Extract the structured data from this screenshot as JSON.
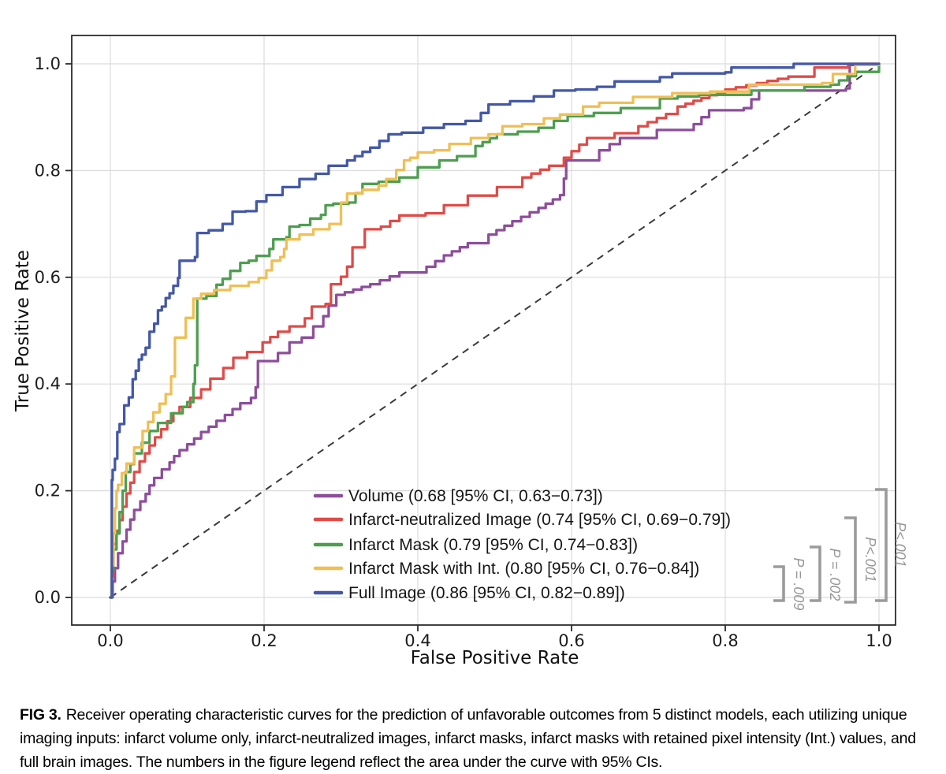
{
  "figure": {
    "caption_label": "FIG 3.",
    "caption_text": "Receiver operating characteristic curves for the prediction of unfavorable outcomes from 5 distinct models, each utilizing unique imaging inputs: infarct volume only, infarct-neutralized images, infarct masks, infarct masks with retained pixel intensity (Int.) values, and full brain images. The numbers in the figure legend reflect the area under the curve with 95% CIs."
  },
  "chart_data": {
    "type": "line",
    "subtype": "roc-step-curves",
    "title": "",
    "xlabel": "False Positive Rate",
    "ylabel": "True Positive Rate",
    "x_ticks": [
      "0.0",
      "0.2",
      "0.4",
      "0.6",
      "0.8",
      "1.0"
    ],
    "y_ticks": [
      "0.0",
      "0.2",
      "0.4",
      "0.6",
      "0.8",
      "1.0"
    ],
    "xlim": [
      -0.05,
      1.05
    ],
    "ylim": [
      -0.05,
      1.05
    ],
    "grid": true,
    "grid_color": "#dcdcdc",
    "spine_color": "#2b2b2b",
    "legend_position": "lower right",
    "reference_line": {
      "type": "diagonal",
      "from": [
        0,
        0
      ],
      "to": [
        1,
        1
      ],
      "style": "dashed",
      "color": "#3a3a3a"
    },
    "series": [
      {
        "name": "Volume",
        "legend_label": "Volume (0.68 [95% CI, 0.63−0.73])",
        "auc": 0.68,
        "ci_low": 0.63,
        "ci_high": 0.73,
        "color": "#8e4d9c",
        "points": [
          [
            0,
            0
          ],
          [
            0.003,
            0.03
          ],
          [
            0.006,
            0.055
          ],
          [
            0.01,
            0.083
          ],
          [
            0.016,
            0.105
          ],
          [
            0.021,
            0.127
          ],
          [
            0.026,
            0.146
          ],
          [
            0.031,
            0.164
          ],
          [
            0.039,
            0.18
          ],
          [
            0.046,
            0.194
          ],
          [
            0.051,
            0.21
          ],
          [
            0.057,
            0.224
          ],
          [
            0.067,
            0.24
          ],
          [
            0.077,
            0.253
          ],
          [
            0.083,
            0.265
          ],
          [
            0.09,
            0.276
          ],
          [
            0.1,
            0.287
          ],
          [
            0.109,
            0.298
          ],
          [
            0.118,
            0.31
          ],
          [
            0.128,
            0.32
          ],
          [
            0.138,
            0.331
          ],
          [
            0.149,
            0.342
          ],
          [
            0.159,
            0.353
          ],
          [
            0.169,
            0.364
          ],
          [
            0.183,
            0.374
          ],
          [
            0.189,
            0.394
          ],
          [
            0.192,
            0.443
          ],
          [
            0.218,
            0.458
          ],
          [
            0.233,
            0.478
          ],
          [
            0.249,
            0.487
          ],
          [
            0.264,
            0.508
          ],
          [
            0.277,
            0.527
          ],
          [
            0.284,
            0.547
          ],
          [
            0.294,
            0.567
          ],
          [
            0.338,
            0.587
          ],
          [
            0.376,
            0.609
          ],
          [
            0.4,
            0.609
          ],
          [
            0.434,
            0.641
          ],
          [
            0.465,
            0.664
          ],
          [
            0.492,
            0.68
          ],
          [
            0.523,
            0.705
          ],
          [
            0.557,
            0.73
          ],
          [
            0.585,
            0.754
          ],
          [
            0.59,
            0.785
          ],
          [
            0.593,
            0.819
          ],
          [
            0.636,
            0.838
          ],
          [
            0.663,
            0.861
          ],
          [
            0.711,
            0.876
          ],
          [
            0.759,
            0.887
          ],
          [
            0.779,
            0.913
          ],
          [
            0.824,
            0.917
          ],
          [
            0.844,
            0.95
          ],
          [
            0.957,
            0.954
          ],
          [
            0.962,
            0.998
          ],
          [
            1,
            1
          ]
        ]
      },
      {
        "name": "Infarct-neutralized Image",
        "legend_label": "Infarct-neutralized Image (0.74 [95% CI, 0.69−0.79])",
        "auc": 0.74,
        "ci_low": 0.69,
        "ci_high": 0.79,
        "color": "#e04b48",
        "points": [
          [
            0,
            0
          ],
          [
            0.002,
            0.04
          ],
          [
            0.004,
            0.1
          ],
          [
            0.008,
            0.125
          ],
          [
            0.012,
            0.145
          ],
          [
            0.016,
            0.17
          ],
          [
            0.021,
            0.195
          ],
          [
            0.026,
            0.215
          ],
          [
            0.031,
            0.235
          ],
          [
            0.038,
            0.255
          ],
          [
            0.045,
            0.27
          ],
          [
            0.051,
            0.285
          ],
          [
            0.058,
            0.3
          ],
          [
            0.066,
            0.315
          ],
          [
            0.074,
            0.33
          ],
          [
            0.082,
            0.345
          ],
          [
            0.09,
            0.357
          ],
          [
            0.104,
            0.374
          ],
          [
            0.118,
            0.39
          ],
          [
            0.13,
            0.41
          ],
          [
            0.147,
            0.43
          ],
          [
            0.16,
            0.449
          ],
          [
            0.178,
            0.46
          ],
          [
            0.198,
            0.478
          ],
          [
            0.218,
            0.498
          ],
          [
            0.233,
            0.508
          ],
          [
            0.253,
            0.523
          ],
          [
            0.262,
            0.545
          ],
          [
            0.28,
            0.55
          ],
          [
            0.287,
            0.587
          ],
          [
            0.3,
            0.601
          ],
          [
            0.308,
            0.62
          ],
          [
            0.315,
            0.656
          ],
          [
            0.331,
            0.69
          ],
          [
            0.352,
            0.695
          ],
          [
            0.376,
            0.716
          ],
          [
            0.41,
            0.72
          ],
          [
            0.434,
            0.735
          ],
          [
            0.465,
            0.753
          ],
          [
            0.503,
            0.769
          ],
          [
            0.536,
            0.787
          ],
          [
            0.571,
            0.809
          ],
          [
            0.59,
            0.824
          ],
          [
            0.62,
            0.861
          ],
          [
            0.656,
            0.87
          ],
          [
            0.687,
            0.883
          ],
          [
            0.723,
            0.906
          ],
          [
            0.738,
            0.92
          ],
          [
            0.8,
            0.952
          ],
          [
            0.882,
            0.976
          ],
          [
            0.916,
            0.993
          ],
          [
            0.96,
            1
          ],
          [
            1,
            1
          ]
        ]
      },
      {
        "name": "Infarct Mask",
        "legend_label": "Infarct Mask (0.79 [95% CI, 0.74−0.83])",
        "auc": 0.79,
        "ci_low": 0.74,
        "ci_high": 0.83,
        "color": "#4e9e50",
        "points": [
          [
            0,
            0
          ],
          [
            0.002,
            0.05
          ],
          [
            0.004,
            0.09
          ],
          [
            0.008,
            0.12
          ],
          [
            0.012,
            0.16
          ],
          [
            0.016,
            0.2
          ],
          [
            0.02,
            0.235
          ],
          [
            0.026,
            0.25
          ],
          [
            0.031,
            0.27
          ],
          [
            0.041,
            0.29
          ],
          [
            0.051,
            0.312
          ],
          [
            0.062,
            0.327
          ],
          [
            0.079,
            0.345
          ],
          [
            0.094,
            0.357
          ],
          [
            0.1,
            0.366
          ],
          [
            0.108,
            0.4
          ],
          [
            0.11,
            0.435
          ],
          [
            0.113,
            0.56
          ],
          [
            0.125,
            0.565
          ],
          [
            0.138,
            0.586
          ],
          [
            0.146,
            0.597
          ],
          [
            0.156,
            0.612
          ],
          [
            0.169,
            0.627
          ],
          [
            0.18,
            0.631
          ],
          [
            0.19,
            0.64
          ],
          [
            0.207,
            0.653
          ],
          [
            0.212,
            0.671
          ],
          [
            0.229,
            0.675
          ],
          [
            0.233,
            0.695
          ],
          [
            0.246,
            0.698
          ],
          [
            0.26,
            0.71
          ],
          [
            0.274,
            0.717
          ],
          [
            0.28,
            0.735
          ],
          [
            0.29,
            0.738
          ],
          [
            0.31,
            0.74
          ],
          [
            0.328,
            0.775
          ],
          [
            0.349,
            0.779
          ],
          [
            0.376,
            0.787
          ],
          [
            0.4,
            0.806
          ],
          [
            0.428,
            0.819
          ],
          [
            0.451,
            0.827
          ],
          [
            0.475,
            0.846
          ],
          [
            0.503,
            0.868
          ],
          [
            0.53,
            0.873
          ],
          [
            0.557,
            0.88
          ],
          [
            0.577,
            0.893
          ],
          [
            0.595,
            0.902
          ],
          [
            0.629,
            0.908
          ],
          [
            0.664,
            0.917
          ],
          [
            0.715,
            0.935
          ],
          [
            0.738,
            0.939
          ],
          [
            0.766,
            0.942
          ],
          [
            0.834,
            0.95
          ],
          [
            0.903,
            0.957
          ],
          [
            0.937,
            0.961
          ],
          [
            0.97,
            0.985
          ],
          [
            1,
            1
          ]
        ]
      },
      {
        "name": "Infarct Mask with Int.",
        "legend_label": "Infarct Mask with Int. (0.80 [95% CI, 0.76−0.84])",
        "auc": 0.8,
        "ci_low": 0.76,
        "ci_high": 0.84,
        "color": "#f0bf54",
        "points": [
          [
            0,
            0
          ],
          [
            0.002,
            0.06
          ],
          [
            0.004,
            0.12
          ],
          [
            0.006,
            0.167
          ],
          [
            0.008,
            0.2
          ],
          [
            0.01,
            0.211
          ],
          [
            0.015,
            0.233
          ],
          [
            0.021,
            0.251
          ],
          [
            0.031,
            0.281
          ],
          [
            0.042,
            0.312
          ],
          [
            0.049,
            0.329
          ],
          [
            0.056,
            0.347
          ],
          [
            0.064,
            0.363
          ],
          [
            0.072,
            0.381
          ],
          [
            0.079,
            0.414
          ],
          [
            0.084,
            0.487
          ],
          [
            0.098,
            0.524
          ],
          [
            0.108,
            0.56
          ],
          [
            0.118,
            0.569
          ],
          [
            0.135,
            0.576
          ],
          [
            0.156,
            0.584
          ],
          [
            0.18,
            0.591
          ],
          [
            0.193,
            0.599
          ],
          [
            0.203,
            0.613
          ],
          [
            0.21,
            0.631
          ],
          [
            0.221,
            0.638
          ],
          [
            0.226,
            0.653
          ],
          [
            0.229,
            0.671
          ],
          [
            0.246,
            0.68
          ],
          [
            0.264,
            0.69
          ],
          [
            0.285,
            0.7
          ],
          [
            0.3,
            0.74
          ],
          [
            0.308,
            0.757
          ],
          [
            0.328,
            0.764
          ],
          [
            0.349,
            0.772
          ],
          [
            0.359,
            0.784
          ],
          [
            0.372,
            0.801
          ],
          [
            0.382,
            0.819
          ],
          [
            0.39,
            0.824
          ],
          [
            0.4,
            0.834
          ],
          [
            0.421,
            0.838
          ],
          [
            0.441,
            0.85
          ],
          [
            0.469,
            0.861
          ],
          [
            0.492,
            0.868
          ],
          [
            0.51,
            0.883
          ],
          [
            0.536,
            0.887
          ],
          [
            0.564,
            0.898
          ],
          [
            0.585,
            0.905
          ],
          [
            0.615,
            0.92
          ],
          [
            0.636,
            0.927
          ],
          [
            0.68,
            0.938
          ],
          [
            0.731,
            0.945
          ],
          [
            0.78,
            0.948
          ],
          [
            0.831,
            0.961
          ],
          [
            0.926,
            0.964
          ],
          [
            0.94,
            0.981
          ],
          [
            0.969,
            0.998
          ],
          [
            1,
            1
          ]
        ]
      },
      {
        "name": "Full Image",
        "legend_label": "Full Image (0.86 [95% CI, 0.82−0.89])",
        "auc": 0.86,
        "ci_low": 0.82,
        "ci_high": 0.89,
        "color": "#4458a7",
        "points": [
          [
            0,
            0
          ],
          [
            0.002,
            0.22
          ],
          [
            0.003,
            0.239
          ],
          [
            0.006,
            0.26
          ],
          [
            0.009,
            0.31
          ],
          [
            0.012,
            0.325
          ],
          [
            0.018,
            0.36
          ],
          [
            0.024,
            0.375
          ],
          [
            0.029,
            0.409
          ],
          [
            0.033,
            0.425
          ],
          [
            0.037,
            0.446
          ],
          [
            0.041,
            0.455
          ],
          [
            0.046,
            0.468
          ],
          [
            0.051,
            0.498
          ],
          [
            0.057,
            0.513
          ],
          [
            0.062,
            0.538
          ],
          [
            0.067,
            0.545
          ],
          [
            0.072,
            0.561
          ],
          [
            0.077,
            0.57
          ],
          [
            0.082,
            0.584
          ],
          [
            0.088,
            0.599
          ],
          [
            0.09,
            0.631
          ],
          [
            0.11,
            0.638
          ],
          [
            0.113,
            0.683
          ],
          [
            0.128,
            0.688
          ],
          [
            0.146,
            0.7
          ],
          [
            0.159,
            0.723
          ],
          [
            0.176,
            0.724
          ],
          [
            0.19,
            0.742
          ],
          [
            0.203,
            0.754
          ],
          [
            0.224,
            0.769
          ],
          [
            0.246,
            0.784
          ],
          [
            0.267,
            0.794
          ],
          [
            0.284,
            0.809
          ],
          [
            0.308,
            0.819
          ],
          [
            0.338,
            0.843
          ],
          [
            0.362,
            0.868
          ],
          [
            0.379,
            0.871
          ],
          [
            0.407,
            0.88
          ],
          [
            0.434,
            0.887
          ],
          [
            0.462,
            0.893
          ],
          [
            0.482,
            0.908
          ],
          [
            0.492,
            0.924
          ],
          [
            0.52,
            0.93
          ],
          [
            0.551,
            0.939
          ],
          [
            0.577,
            0.95
          ],
          [
            0.605,
            0.952
          ],
          [
            0.633,
            0.957
          ],
          [
            0.656,
            0.967
          ],
          [
            0.715,
            0.975
          ],
          [
            0.731,
            0.982
          ],
          [
            0.8,
            0.984
          ],
          [
            0.808,
            0.993
          ],
          [
            0.889,
            1
          ],
          [
            1,
            1
          ]
        ]
      }
    ],
    "p_brackets": [
      {
        "label": "P = .009"
      },
      {
        "label": "P = .002"
      },
      {
        "label": "P<.001"
      },
      {
        "label": "P<.001"
      }
    ],
    "bracket_color": "#9b9b9b"
  }
}
